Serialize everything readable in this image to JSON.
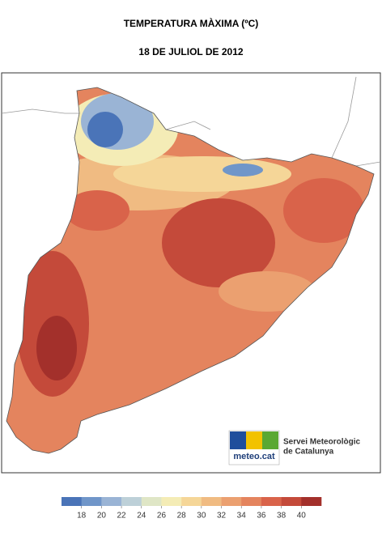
{
  "title": "TEMPERATURA MÀXIMA (ºC)",
  "subtitle": "18 DE JULIOL DE 2012",
  "logo": {
    "brand": "meteo.cat",
    "name_line1": "Servei Meteorològic",
    "name_line2": "de Catalunya"
  },
  "legend": {
    "ticks": [
      18,
      20,
      22,
      24,
      26,
      28,
      30,
      32,
      34,
      36,
      38,
      40
    ],
    "colors": [
      "#4a74b8",
      "#7096c9",
      "#9ab4d5",
      "#bdd0d8",
      "#dfe6c6",
      "#f4ecb6",
      "#f5d698",
      "#f0bb82",
      "#eba070",
      "#e4845e",
      "#d9634a",
      "#c44a3a",
      "#a3302b"
    ]
  }
}
